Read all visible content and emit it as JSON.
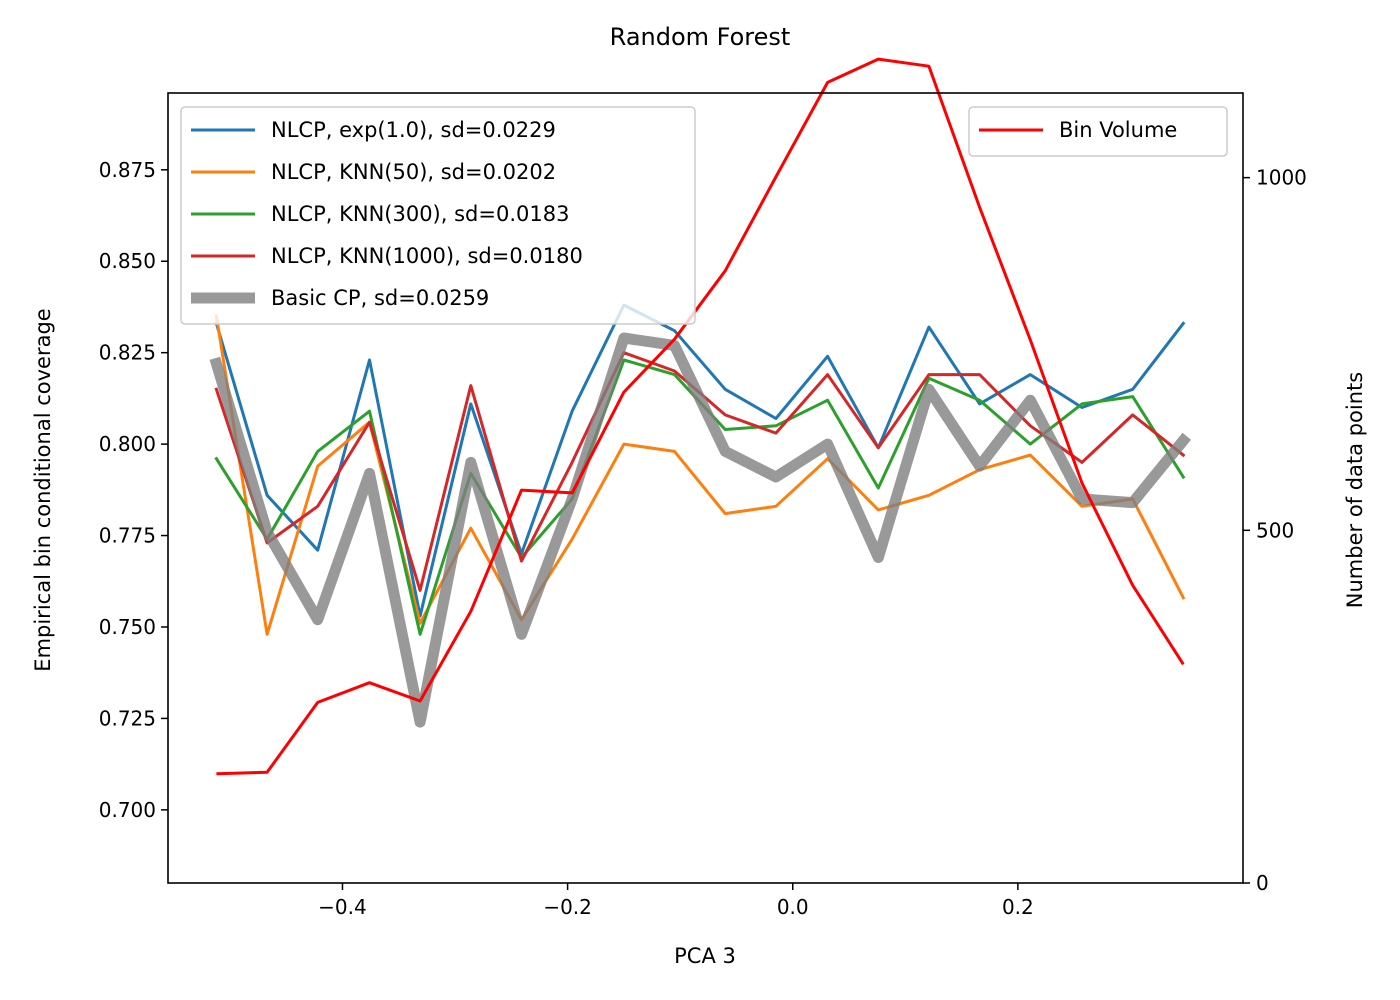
{
  "chart_data": {
    "type": "line",
    "title": "Random Forest",
    "xlabel": "PCA 3",
    "ylabel": "Empirical bin conditional coverage",
    "ylabel_right": "Number of data points",
    "xlim": [
      -0.555,
      0.4
    ],
    "ylim": [
      0.68,
      0.896
    ],
    "ylim_right": [
      0,
      1120
    ],
    "x_ticks": [
      -0.4,
      -0.2,
      0.0,
      0.2
    ],
    "x_tick_labels": [
      "−0.4",
      "−0.2",
      "0.0",
      "0.2"
    ],
    "y_ticks": [
      0.7,
      0.725,
      0.75,
      0.775,
      0.8,
      0.825,
      0.85,
      0.875
    ],
    "y_tick_labels": [
      "0.700",
      "0.725",
      "0.750",
      "0.775",
      "0.800",
      "0.825",
      "0.850",
      "0.875"
    ],
    "y_right_ticks": [
      0,
      500,
      1000
    ],
    "y_right_tick_labels": [
      "0",
      "500",
      "1000"
    ],
    "grid": false,
    "legend_left_placement": "upper-left",
    "legend_right_placement": "upper-right",
    "x": [
      -0.512,
      -0.467,
      -0.422,
      -0.376,
      -0.331,
      -0.286,
      -0.241,
      -0.196,
      -0.15,
      -0.105,
      -0.06,
      -0.015,
      0.031,
      0.076,
      0.121,
      0.166,
      0.211,
      0.257,
      0.302,
      0.347
    ],
    "series": [
      {
        "name": "NLCP, exp(1.0), sd=0.0229",
        "color": "#1f77b4",
        "width": 3,
        "values": [
          0.833,
          0.786,
          0.771,
          0.823,
          0.753,
          0.811,
          0.77,
          0.809,
          0.838,
          0.831,
          0.815,
          0.807,
          0.824,
          0.799,
          0.832,
          0.811,
          0.819,
          0.81,
          0.815,
          0.833
        ]
      },
      {
        "name": "NLCP, KNN(50), sd=0.0202",
        "color": "#ff7f0e",
        "width": 3,
        "values": [
          0.835,
          0.748,
          0.794,
          0.806,
          0.751,
          0.777,
          0.752,
          0.774,
          0.8,
          0.798,
          0.781,
          0.783,
          0.796,
          0.782,
          0.786,
          0.793,
          0.797,
          0.783,
          0.785,
          0.758
        ]
      },
      {
        "name": "NLCP, KNN(300), sd=0.0183",
        "color": "#2ca02c",
        "width": 3,
        "values": [
          0.796,
          0.774,
          0.798,
          0.809,
          0.748,
          0.792,
          0.769,
          0.785,
          0.823,
          0.819,
          0.804,
          0.805,
          0.812,
          0.788,
          0.818,
          0.812,
          0.8,
          0.811,
          0.813,
          0.791
        ]
      },
      {
        "name": "NLCP, KNN(1000), sd=0.0180",
        "color": "#d62728",
        "width": 3,
        "values": [
          0.815,
          0.773,
          0.783,
          0.806,
          0.76,
          0.816,
          0.768,
          0.795,
          0.825,
          0.82,
          0.808,
          0.803,
          0.819,
          0.799,
          0.819,
          0.819,
          0.805,
          0.795,
          0.808,
          0.797
        ]
      },
      {
        "name": "Basic CP, sd=0.0259",
        "color": "#808080",
        "opacity": 0.8,
        "width": 11,
        "values": [
          0.822,
          0.776,
          0.752,
          0.792,
          0.724,
          0.795,
          0.748,
          0.785,
          0.829,
          0.827,
          0.798,
          0.791,
          0.8,
          0.769,
          0.815,
          0.794,
          0.812,
          0.785,
          0.784,
          0.801
        ]
      }
    ],
    "right_series": [
      {
        "name": "Bin Volume",
        "color": "#ff0000",
        "width": 3,
        "values": [
          155,
          157,
          256,
          284,
          258,
          385,
          557,
          553,
          696,
          771,
          868,
          1001,
          1135,
          1168,
          1158,
          958,
          770,
          567,
          422,
          310
        ]
      }
    ]
  }
}
